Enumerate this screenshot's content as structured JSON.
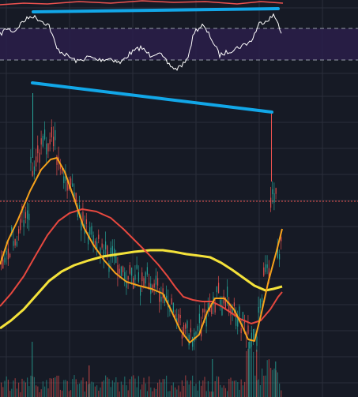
{
  "app": {
    "name": "trading-chart-crop"
  },
  "colors": {
    "background": "#161a25",
    "grid": "#2a2e3a",
    "rsi_band": "#2a1f4a",
    "rsi_line": "#ffffff",
    "rsi_guides": "#9aa0ad",
    "divergence_lines": "#12a7e8",
    "ma_fast": "#f7a21b",
    "ma_mid": "#e6483f",
    "ma_slow": "#f4e23a",
    "candle_up": "#26a69a",
    "candle_down": "#ef5350",
    "price_line": "#ef5350"
  },
  "panes": [
    {
      "id": "rsi",
      "label": ""
    },
    {
      "id": "price",
      "label": ""
    }
  ],
  "chart_data": {
    "type": "line",
    "title": "",
    "series": [
      {
        "key": "ma_fast"
      },
      {
        "key": "ma_mid"
      },
      {
        "key": "ma_slow"
      },
      {
        "key": "rsi"
      }
    ],
    "grid": true,
    "annotations": [
      {
        "type": "trendline",
        "pane": "rsi"
      },
      {
        "type": "trendline",
        "pane": "price"
      },
      {
        "type": "horizontal-dotted-line",
        "pane": "price"
      }
    ]
  }
}
